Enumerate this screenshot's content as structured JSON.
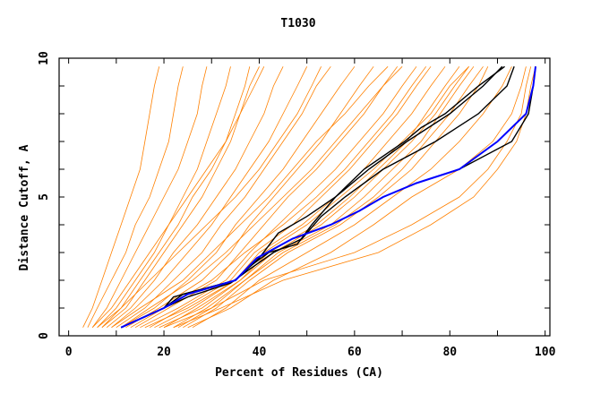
{
  "chart_data": {
    "type": "line",
    "title": "T1030",
    "xlabel": "Percent of Residues (CA)",
    "ylabel": "Distance Cutoff, A",
    "xlim": [
      -2,
      101
    ],
    "ylim": [
      0,
      10
    ],
    "xticks": [
      "0",
      "20",
      "40",
      "60",
      "80",
      "100"
    ],
    "xtick_values": [
      0,
      20,
      40,
      60,
      80,
      100
    ],
    "yticks": [
      "0",
      "5",
      "10"
    ],
    "ytick_values": [
      0,
      5,
      10
    ],
    "grid": false,
    "colors": {
      "orange": "#ff8000",
      "black": "#000000",
      "blue": "#0000ff"
    },
    "y_levels": [
      0.3,
      1,
      2,
      3,
      4,
      5,
      6,
      7,
      8,
      9,
      9.7
    ],
    "orange_series": [
      [
        3,
        5,
        7,
        9,
        11,
        13,
        15,
        16,
        17,
        18,
        19
      ],
      [
        4,
        6,
        9,
        12,
        14,
        17,
        19,
        21,
        22,
        23,
        24
      ],
      [
        5,
        8,
        11,
        14,
        17,
        20,
        23,
        25,
        27,
        28,
        29
      ],
      [
        6,
        10,
        14,
        18,
        21,
        24,
        27,
        29,
        31,
        33,
        34
      ],
      [
        7,
        12,
        16,
        20,
        24,
        28,
        31,
        34,
        36,
        38,
        40
      ],
      [
        8,
        13,
        18,
        22,
        27,
        31,
        35,
        38,
        41,
        43,
        45
      ],
      [
        9,
        14,
        20,
        25,
        30,
        34,
        38,
        42,
        45,
        48,
        50
      ],
      [
        10,
        16,
        22,
        28,
        32,
        37,
        41,
        45,
        49,
        52,
        55
      ],
      [
        11,
        18,
        25,
        31,
        35,
        40,
        45,
        49,
        53,
        57,
        60
      ],
      [
        12,
        19,
        28,
        34,
        38,
        43,
        48,
        53,
        57,
        61,
        64
      ],
      [
        14,
        21,
        31,
        36,
        41,
        46,
        52,
        57,
        62,
        66,
        69
      ],
      [
        15,
        23,
        33,
        38,
        44,
        50,
        56,
        61,
        66,
        70,
        73
      ],
      [
        17,
        24,
        34,
        39,
        47,
        53,
        59,
        64,
        69,
        73,
        76
      ],
      [
        18,
        26,
        35,
        40,
        49,
        56,
        62,
        67,
        72,
        76,
        79
      ],
      [
        20,
        27,
        36,
        42,
        52,
        59,
        65,
        71,
        75,
        79,
        82
      ],
      [
        22,
        29,
        37,
        44,
        55,
        62,
        68,
        74,
        78,
        82,
        85
      ],
      [
        24,
        31,
        38,
        46,
        57,
        65,
        72,
        77,
        82,
        86,
        88
      ],
      [
        26,
        33,
        40,
        50,
        60,
        68,
        76,
        82,
        87,
        91,
        93
      ],
      [
        25,
        34,
        43,
        55,
        64,
        72,
        82,
        89,
        93,
        95,
        96
      ],
      [
        20,
        30,
        41,
        60,
        72,
        82,
        88,
        92,
        95,
        96,
        97
      ],
      [
        22,
        32,
        45,
        65,
        76,
        85,
        90,
        94,
        96,
        97,
        98
      ],
      [
        6,
        11,
        17,
        23,
        29,
        35,
        40,
        44,
        48,
        51,
        53
      ],
      [
        9,
        15,
        24,
        30,
        36,
        42,
        47,
        52,
        58,
        63,
        67
      ],
      [
        13,
        20,
        30,
        37,
        45,
        52,
        58,
        63,
        68,
        72,
        75
      ],
      [
        5,
        9,
        13,
        17,
        21,
        25,
        29,
        33,
        36,
        39,
        41
      ],
      [
        16,
        25,
        35,
        41,
        50,
        57,
        64,
        70,
        76,
        80,
        84
      ],
      [
        11,
        17,
        26,
        33,
        39,
        45,
        51,
        56,
        61,
        66,
        70
      ],
      [
        7,
        11,
        15,
        19,
        23,
        26,
        30,
        33,
        35,
        37,
        38
      ],
      [
        19,
        28,
        36,
        43,
        53,
        60,
        66,
        72,
        77,
        81,
        84
      ],
      [
        23,
        30,
        37,
        45,
        56,
        64,
        70,
        75,
        80,
        84,
        87
      ]
    ],
    "black_series": [
      [
        [
          11,
          0.3
        ],
        [
          20,
          1
        ],
        [
          25,
          1.5
        ],
        [
          35,
          2
        ],
        [
          39.5,
          2.8
        ],
        [
          47,
          3.5
        ],
        [
          55,
          4
        ],
        [
          61,
          4.5
        ],
        [
          66,
          5
        ],
        [
          73,
          5.5
        ],
        [
          82,
          6
        ],
        [
          93,
          7
        ],
        [
          96.5,
          8
        ],
        [
          97.5,
          9
        ],
        [
          98,
          9.7
        ]
      ],
      [
        [
          11,
          0.3
        ],
        [
          20,
          1
        ],
        [
          22,
          1.4
        ],
        [
          35,
          2
        ],
        [
          40,
          2.8
        ],
        [
          44,
          3.7
        ],
        [
          50,
          4.3
        ],
        [
          56,
          5
        ],
        [
          63,
          6
        ],
        [
          71,
          7
        ],
        [
          80,
          8
        ],
        [
          87,
          9
        ],
        [
          91,
          9.7
        ]
      ],
      [
        [
          11,
          0.3
        ],
        [
          20,
          1
        ],
        [
          24,
          1.5
        ],
        [
          35,
          2
        ],
        [
          38,
          2.5
        ],
        [
          42,
          3
        ],
        [
          48,
          3.3
        ],
        [
          51,
          4
        ],
        [
          56,
          5
        ],
        [
          62,
          6
        ],
        [
          70.5,
          7
        ],
        [
          74,
          7.5
        ],
        [
          79,
          8
        ],
        [
          86,
          9
        ],
        [
          91.5,
          9.7
        ]
      ],
      [
        [
          11,
          0.3
        ],
        [
          20,
          1
        ],
        [
          25,
          1.4
        ],
        [
          34,
          1.9
        ],
        [
          38,
          2.4
        ],
        [
          43,
          3
        ],
        [
          49,
          3.5
        ],
        [
          53,
          4.3
        ],
        [
          58,
          5
        ],
        [
          66,
          6
        ],
        [
          77,
          7
        ],
        [
          86,
          8
        ],
        [
          92,
          9
        ],
        [
          93.5,
          9.7
        ]
      ]
    ],
    "blue_series": [
      [
        11,
        0.3
      ],
      [
        20,
        1
      ],
      [
        25,
        1.5
      ],
      [
        35,
        2
      ],
      [
        39.5,
        2.8
      ],
      [
        47,
        3.5
      ],
      [
        55,
        4
      ],
      [
        61,
        4.5
      ],
      [
        66,
        5
      ],
      [
        73,
        5.5
      ],
      [
        82,
        6
      ],
      [
        90,
        7
      ],
      [
        96,
        8
      ],
      [
        97.5,
        9
      ],
      [
        98,
        9.7
      ]
    ]
  }
}
